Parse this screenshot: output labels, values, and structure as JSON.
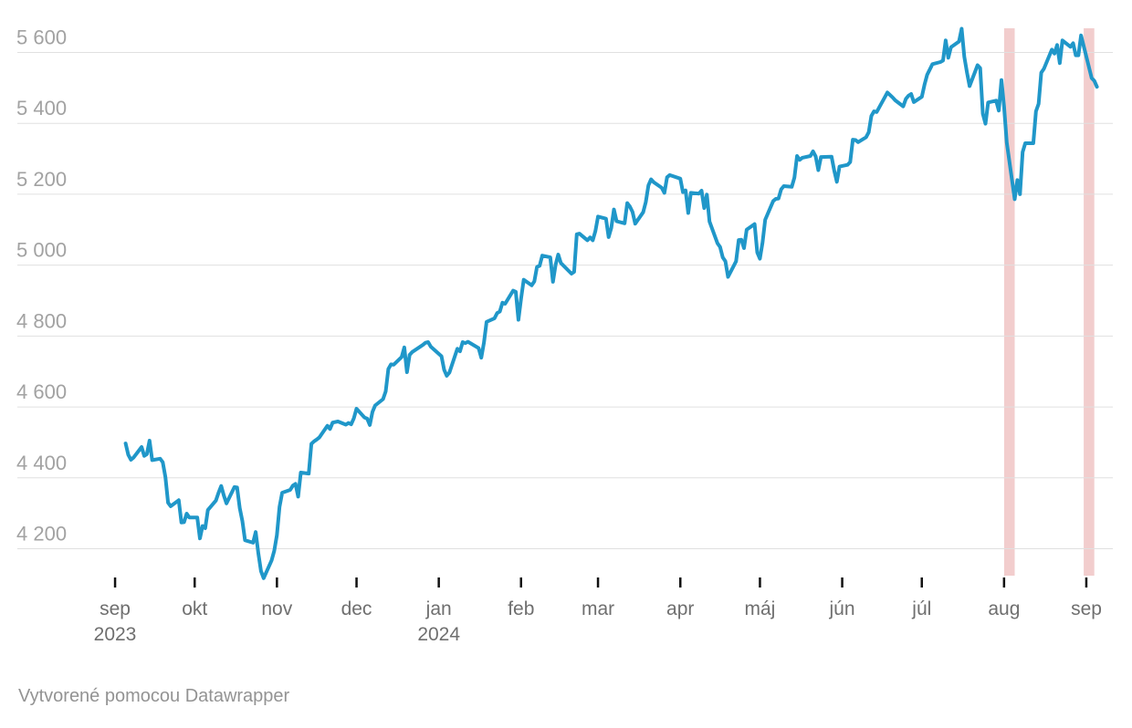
{
  "footer": {
    "attribution": "Vytvorené pomocou Datawrapper"
  },
  "chart_data": {
    "type": "line",
    "x_type": "date",
    "xlim": [
      "2023-09-01",
      "2024-09-13"
    ],
    "ylim": [
      4080,
      5690
    ],
    "grid": true,
    "legend": false,
    "y_axis": {
      "ticks": [
        {
          "value": 5600,
          "label": "5 600"
        },
        {
          "value": 5400,
          "label": "5 400"
        },
        {
          "value": 5200,
          "label": "5 200"
        },
        {
          "value": 5000,
          "label": "5 000"
        },
        {
          "value": 4800,
          "label": "4 800"
        },
        {
          "value": 4600,
          "label": "4 600"
        },
        {
          "value": 4400,
          "label": "4 400"
        },
        {
          "value": 4200,
          "label": "4 200"
        }
      ]
    },
    "x_axis": {
      "months": [
        {
          "label": "sep",
          "date": "2023-09-01",
          "year": "2023"
        },
        {
          "label": "okt",
          "date": "2023-10-01"
        },
        {
          "label": "nov",
          "date": "2023-11-01"
        },
        {
          "label": "dec",
          "date": "2023-12-01"
        },
        {
          "label": "jan",
          "date": "2024-01-01",
          "year": "2024"
        },
        {
          "label": "feb",
          "date": "2024-02-01"
        },
        {
          "label": "mar",
          "date": "2024-03-01"
        },
        {
          "label": "apr",
          "date": "2024-04-01"
        },
        {
          "label": "máj",
          "date": "2024-05-01"
        },
        {
          "label": "jún",
          "date": "2024-06-01"
        },
        {
          "label": "júl",
          "date": "2024-07-01"
        },
        {
          "label": "aug",
          "date": "2024-08-01"
        },
        {
          "label": "sep",
          "date": "2024-09-01"
        }
      ]
    },
    "highlights": [
      {
        "from": "2024-08-01",
        "to": "2024-08-05"
      },
      {
        "from": "2024-08-31",
        "to": "2024-09-04"
      }
    ],
    "colors": {
      "line": "#2097c9",
      "highlight_band": "#f2cdcd",
      "gridline": "#e0e0e0",
      "tick": "#111111",
      "y_label": "#a2a2a2",
      "x_label": "#6f6f6f",
      "attribution": "#939393",
      "background": "#ffffff"
    },
    "points": [
      [
        "2023-09-05",
        4497
      ],
      [
        "2023-09-06",
        4465
      ],
      [
        "2023-09-07",
        4451
      ],
      [
        "2023-09-08",
        4457
      ],
      [
        "2023-09-11",
        4487
      ],
      [
        "2023-09-12",
        4462
      ],
      [
        "2023-09-13",
        4467
      ],
      [
        "2023-09-14",
        4505
      ],
      [
        "2023-09-15",
        4450
      ],
      [
        "2023-09-18",
        4454
      ],
      [
        "2023-09-19",
        4444
      ],
      [
        "2023-09-20",
        4402
      ],
      [
        "2023-09-21",
        4330
      ],
      [
        "2023-09-22",
        4320
      ],
      [
        "2023-09-25",
        4337
      ],
      [
        "2023-09-26",
        4274
      ],
      [
        "2023-09-27",
        4275
      ],
      [
        "2023-09-28",
        4299
      ],
      [
        "2023-09-29",
        4288
      ],
      [
        "2023-10-02",
        4288
      ],
      [
        "2023-10-03",
        4229
      ],
      [
        "2023-10-04",
        4264
      ],
      [
        "2023-10-05",
        4258
      ],
      [
        "2023-10-06",
        4309
      ],
      [
        "2023-10-09",
        4336
      ],
      [
        "2023-10-10",
        4358
      ],
      [
        "2023-10-11",
        4377
      ],
      [
        "2023-10-12",
        4350
      ],
      [
        "2023-10-13",
        4328
      ],
      [
        "2023-10-16",
        4374
      ],
      [
        "2023-10-17",
        4373
      ],
      [
        "2023-10-18",
        4315
      ],
      [
        "2023-10-19",
        4278
      ],
      [
        "2023-10-20",
        4224
      ],
      [
        "2023-10-23",
        4217
      ],
      [
        "2023-10-24",
        4247
      ],
      [
        "2023-10-25",
        4187
      ],
      [
        "2023-10-26",
        4137
      ],
      [
        "2023-10-27",
        4117
      ],
      [
        "2023-10-30",
        4167
      ],
      [
        "2023-10-31",
        4194
      ],
      [
        "2023-11-01",
        4238
      ],
      [
        "2023-11-02",
        4318
      ],
      [
        "2023-11-03",
        4358
      ],
      [
        "2023-11-06",
        4366
      ],
      [
        "2023-11-07",
        4378
      ],
      [
        "2023-11-08",
        4383
      ],
      [
        "2023-11-09",
        4347
      ],
      [
        "2023-11-10",
        4415
      ],
      [
        "2023-11-13",
        4412
      ],
      [
        "2023-11-14",
        4496
      ],
      [
        "2023-11-15",
        4503
      ],
      [
        "2023-11-16",
        4508
      ],
      [
        "2023-11-17",
        4514
      ],
      [
        "2023-11-20",
        4547
      ],
      [
        "2023-11-21",
        4538
      ],
      [
        "2023-11-22",
        4556
      ],
      [
        "2023-11-24",
        4559
      ],
      [
        "2023-11-27",
        4550
      ],
      [
        "2023-11-28",
        4555
      ],
      [
        "2023-11-29",
        4551
      ],
      [
        "2023-11-30",
        4568
      ],
      [
        "2023-12-01",
        4595
      ],
      [
        "2023-12-04",
        4570
      ],
      [
        "2023-12-05",
        4567
      ],
      [
        "2023-12-06",
        4549
      ],
      [
        "2023-12-07",
        4586
      ],
      [
        "2023-12-08",
        4604
      ],
      [
        "2023-12-11",
        4622
      ],
      [
        "2023-12-12",
        4644
      ],
      [
        "2023-12-13",
        4707
      ],
      [
        "2023-12-14",
        4720
      ],
      [
        "2023-12-15",
        4719
      ],
      [
        "2023-12-18",
        4741
      ],
      [
        "2023-12-19",
        4768
      ],
      [
        "2023-12-20",
        4698
      ],
      [
        "2023-12-21",
        4747
      ],
      [
        "2023-12-22",
        4755
      ],
      [
        "2023-12-26",
        4775
      ],
      [
        "2023-12-27",
        4781
      ],
      [
        "2023-12-28",
        4783
      ],
      [
        "2023-12-29",
        4770
      ],
      [
        "2024-01-02",
        4743
      ],
      [
        "2024-01-03",
        4705
      ],
      [
        "2024-01-04",
        4688
      ],
      [
        "2024-01-05",
        4697
      ],
      [
        "2024-01-08",
        4764
      ],
      [
        "2024-01-09",
        4757
      ],
      [
        "2024-01-10",
        4783
      ],
      [
        "2024-01-11",
        4780
      ],
      [
        "2024-01-12",
        4784
      ],
      [
        "2024-01-16",
        4766
      ],
      [
        "2024-01-17",
        4739
      ],
      [
        "2024-01-18",
        4781
      ],
      [
        "2024-01-19",
        4840
      ],
      [
        "2024-01-22",
        4850
      ],
      [
        "2024-01-23",
        4865
      ],
      [
        "2024-01-24",
        4869
      ],
      [
        "2024-01-25",
        4894
      ],
      [
        "2024-01-26",
        4891
      ],
      [
        "2024-01-29",
        4928
      ],
      [
        "2024-01-30",
        4925
      ],
      [
        "2024-01-31",
        4846
      ],
      [
        "2024-02-01",
        4906
      ],
      [
        "2024-02-02",
        4959
      ],
      [
        "2024-02-05",
        4943
      ],
      [
        "2024-02-06",
        4954
      ],
      [
        "2024-02-07",
        4995
      ],
      [
        "2024-02-08",
        4998
      ],
      [
        "2024-02-09",
        5027
      ],
      [
        "2024-02-12",
        5022
      ],
      [
        "2024-02-13",
        4953
      ],
      [
        "2024-02-14",
        5001
      ],
      [
        "2024-02-15",
        5030
      ],
      [
        "2024-02-16",
        5006
      ],
      [
        "2024-02-20",
        4976
      ],
      [
        "2024-02-21",
        4981
      ],
      [
        "2024-02-22",
        5087
      ],
      [
        "2024-02-23",
        5089
      ],
      [
        "2024-02-26",
        5070
      ],
      [
        "2024-02-27",
        5078
      ],
      [
        "2024-02-28",
        5070
      ],
      [
        "2024-02-29",
        5096
      ],
      [
        "2024-03-01",
        5137
      ],
      [
        "2024-03-04",
        5131
      ],
      [
        "2024-03-05",
        5079
      ],
      [
        "2024-03-06",
        5105
      ],
      [
        "2024-03-07",
        5157
      ],
      [
        "2024-03-08",
        5124
      ],
      [
        "2024-03-11",
        5118
      ],
      [
        "2024-03-12",
        5175
      ],
      [
        "2024-03-13",
        5165
      ],
      [
        "2024-03-14",
        5150
      ],
      [
        "2024-03-15",
        5117
      ],
      [
        "2024-03-18",
        5149
      ],
      [
        "2024-03-19",
        5178
      ],
      [
        "2024-03-20",
        5225
      ],
      [
        "2024-03-21",
        5242
      ],
      [
        "2024-03-22",
        5234
      ],
      [
        "2024-03-25",
        5218
      ],
      [
        "2024-03-26",
        5204
      ],
      [
        "2024-03-27",
        5248
      ],
      [
        "2024-03-28",
        5254
      ],
      [
        "2024-04-01",
        5244
      ],
      [
        "2024-04-02",
        5206
      ],
      [
        "2024-04-03",
        5211
      ],
      [
        "2024-04-04",
        5147
      ],
      [
        "2024-04-05",
        5204
      ],
      [
        "2024-04-08",
        5202
      ],
      [
        "2024-04-09",
        5210
      ],
      [
        "2024-04-10",
        5161
      ],
      [
        "2024-04-11",
        5199
      ],
      [
        "2024-04-12",
        5123
      ],
      [
        "2024-04-15",
        5062
      ],
      [
        "2024-04-16",
        5051
      ],
      [
        "2024-04-17",
        5022
      ],
      [
        "2024-04-18",
        5011
      ],
      [
        "2024-04-19",
        4967
      ],
      [
        "2024-04-22",
        5011
      ],
      [
        "2024-04-23",
        5071
      ],
      [
        "2024-04-24",
        5072
      ],
      [
        "2024-04-25",
        5048
      ],
      [
        "2024-04-26",
        5100
      ],
      [
        "2024-04-29",
        5116
      ],
      [
        "2024-04-30",
        5036
      ],
      [
        "2024-05-01",
        5018
      ],
      [
        "2024-05-02",
        5064
      ],
      [
        "2024-05-03",
        5128
      ],
      [
        "2024-05-06",
        5181
      ],
      [
        "2024-05-07",
        5187
      ],
      [
        "2024-05-08",
        5188
      ],
      [
        "2024-05-09",
        5214
      ],
      [
        "2024-05-10",
        5223
      ],
      [
        "2024-05-13",
        5221
      ],
      [
        "2024-05-14",
        5247
      ],
      [
        "2024-05-15",
        5308
      ],
      [
        "2024-05-16",
        5297
      ],
      [
        "2024-05-17",
        5303
      ],
      [
        "2024-05-20",
        5308
      ],
      [
        "2024-05-21",
        5321
      ],
      [
        "2024-05-22",
        5307
      ],
      [
        "2024-05-23",
        5268
      ],
      [
        "2024-05-24",
        5305
      ],
      [
        "2024-05-28",
        5306
      ],
      [
        "2024-05-29",
        5267
      ],
      [
        "2024-05-30",
        5235
      ],
      [
        "2024-05-31",
        5278
      ],
      [
        "2024-06-03",
        5283
      ],
      [
        "2024-06-04",
        5291
      ],
      [
        "2024-06-05",
        5354
      ],
      [
        "2024-06-06",
        5353
      ],
      [
        "2024-06-07",
        5347
      ],
      [
        "2024-06-10",
        5361
      ],
      [
        "2024-06-11",
        5375
      ],
      [
        "2024-06-12",
        5421
      ],
      [
        "2024-06-13",
        5434
      ],
      [
        "2024-06-14",
        5432
      ],
      [
        "2024-06-17",
        5473
      ],
      [
        "2024-06-18",
        5487
      ],
      [
        "2024-06-20",
        5473
      ],
      [
        "2024-06-21",
        5465
      ],
      [
        "2024-06-24",
        5448
      ],
      [
        "2024-06-25",
        5469
      ],
      [
        "2024-06-26",
        5478
      ],
      [
        "2024-06-27",
        5483
      ],
      [
        "2024-06-28",
        5460
      ],
      [
        "2024-07-01",
        5475
      ],
      [
        "2024-07-02",
        5509
      ],
      [
        "2024-07-03",
        5537
      ],
      [
        "2024-07-05",
        5567
      ],
      [
        "2024-07-08",
        5573
      ],
      [
        "2024-07-09",
        5577
      ],
      [
        "2024-07-10",
        5634
      ],
      [
        "2024-07-11",
        5585
      ],
      [
        "2024-07-12",
        5615
      ],
      [
        "2024-07-15",
        5631
      ],
      [
        "2024-07-16",
        5667
      ],
      [
        "2024-07-17",
        5588
      ],
      [
        "2024-07-18",
        5544
      ],
      [
        "2024-07-19",
        5505
      ],
      [
        "2024-07-22",
        5564
      ],
      [
        "2024-07-23",
        5556
      ],
      [
        "2024-07-24",
        5427
      ],
      [
        "2024-07-25",
        5399
      ],
      [
        "2024-07-26",
        5459
      ],
      [
        "2024-07-29",
        5464
      ],
      [
        "2024-07-30",
        5436
      ],
      [
        "2024-07-31",
        5522
      ],
      [
        "2024-08-01",
        5446
      ],
      [
        "2024-08-02",
        5346
      ],
      [
        "2024-08-05",
        5186
      ],
      [
        "2024-08-06",
        5240
      ],
      [
        "2024-08-07",
        5200
      ],
      [
        "2024-08-08",
        5319
      ],
      [
        "2024-08-09",
        5344
      ],
      [
        "2024-08-12",
        5344
      ],
      [
        "2024-08-13",
        5434
      ],
      [
        "2024-08-14",
        5455
      ],
      [
        "2024-08-15",
        5543
      ],
      [
        "2024-08-16",
        5554
      ],
      [
        "2024-08-19",
        5608
      ],
      [
        "2024-08-20",
        5597
      ],
      [
        "2024-08-21",
        5621
      ],
      [
        "2024-08-22",
        5570
      ],
      [
        "2024-08-23",
        5634
      ],
      [
        "2024-08-26",
        5616
      ],
      [
        "2024-08-27",
        5626
      ],
      [
        "2024-08-28",
        5592
      ],
      [
        "2024-08-29",
        5592
      ],
      [
        "2024-08-30",
        5648
      ],
      [
        "2024-09-03",
        5528
      ],
      [
        "2024-09-04",
        5520
      ],
      [
        "2024-09-05",
        5503
      ]
    ]
  }
}
